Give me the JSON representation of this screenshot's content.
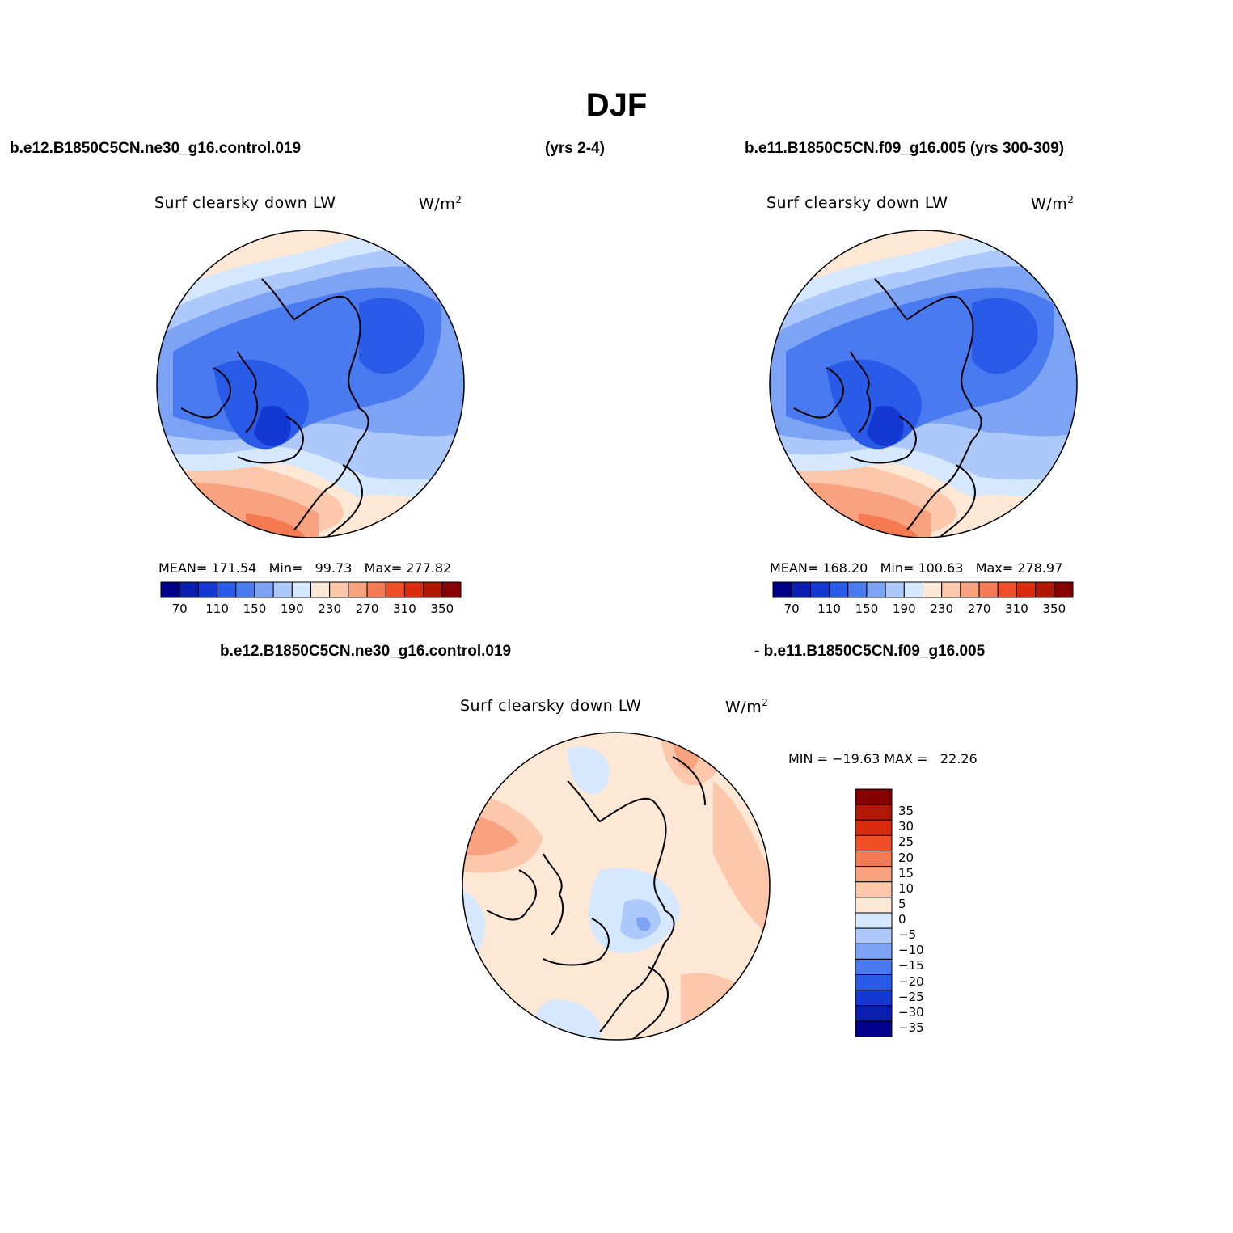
{
  "title": "DJF",
  "header": {
    "left_case": "b.e12.B1850C5CN.ne30_g16.control.019",
    "left_years": "(yrs 2-4)",
    "right_case": "b.e11.B1850C5CN.f09_g16.005 (yrs 300-309)"
  },
  "diff_header": {
    "left": "b.e12.B1850C5CN.ne30_g16.control.019",
    "right": "- b.e11.B1850C5CN.f09_g16.005"
  },
  "panels": [
    {
      "variable": "Surf clearsky down LW",
      "units": "W/m",
      "units_sup": "2",
      "stats": "MEAN= 171.54   Min=   99.73   Max= 277.82",
      "mean": 171.54,
      "min": 99.73,
      "max": 277.82
    },
    {
      "variable": "Surf clearsky down LW",
      "units": "W/m",
      "units_sup": "2",
      "stats": "MEAN= 168.20   Min= 100.63   Max= 278.97",
      "mean": 168.2,
      "min": 100.63,
      "max": 278.97
    },
    {
      "variable": "Surf clearsky down LW",
      "units": "W/m",
      "units_sup": "2",
      "stats": "MIN = −19.63 MAX =   22.26",
      "min": -19.63,
      "max": 22.26
    }
  ],
  "colorbar_abs": {
    "colors": [
      "#00008b",
      "#0a1fb0",
      "#1438d2",
      "#2a5ae8",
      "#4a7af0",
      "#7da3f5",
      "#adc8fa",
      "#d6e8fd",
      "#fde8d6",
      "#fcc7ab",
      "#f9a27f",
      "#f57a52",
      "#ef4e26",
      "#d92b0d",
      "#b01804",
      "#870000"
    ],
    "labels": [
      "70",
      "110",
      "150",
      "190",
      "230",
      "270",
      "310",
      "350"
    ]
  },
  "colorbar_diff": {
    "colors": [
      "#870000",
      "#b01804",
      "#d92b0d",
      "#ef4e26",
      "#f57a52",
      "#f9a27f",
      "#fcc7ab",
      "#fde8d6",
      "#d6e8fd",
      "#adc8fa",
      "#7da3f5",
      "#4a7af0",
      "#2a5ae8",
      "#1438d2",
      "#0a1fb0",
      "#00008b"
    ],
    "labels": [
      "35",
      "30",
      "25",
      "20",
      "15",
      "10",
      "5",
      "0",
      "−5",
      "−10",
      "−15",
      "−20",
      "−25",
      "−30",
      "−35"
    ]
  }
}
